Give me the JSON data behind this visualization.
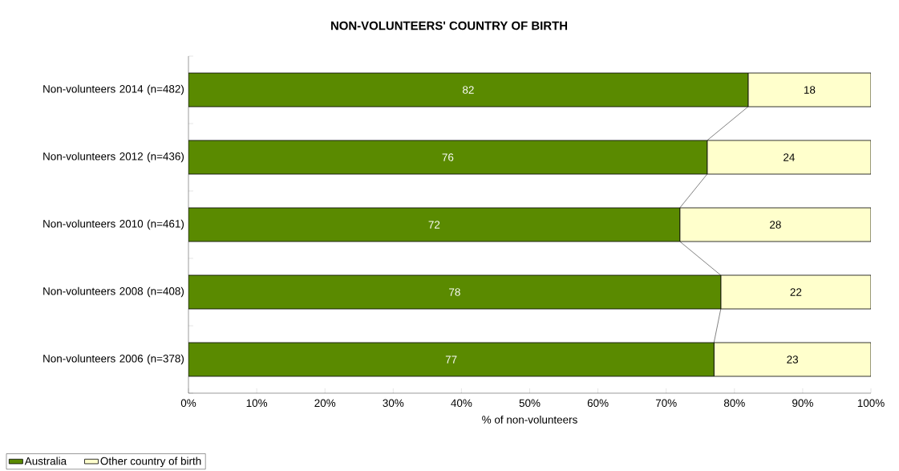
{
  "chart_data": {
    "type": "bar",
    "title": "NON-VOLUNTEERS' COUNTRY OF BIRTH",
    "xlabel": "% of non-volunteers",
    "orientation": "horizontal",
    "stacked": true,
    "data_labels": true,
    "legend": "bottom left",
    "categories": [
      "Non-volunteers 2014 (n=482)",
      "Non-volunteers 2012 (n=436)",
      "Non-volunteers 2010 (n=461)",
      "Non-volunteers 2008 (n=408)",
      "Non-volunteers 2006 (n=378)"
    ],
    "series": [
      {
        "name": "Australia",
        "color": "#5a8a00",
        "values": [
          82,
          76,
          72,
          78,
          77
        ]
      },
      {
        "name": "Other country of birth",
        "color": "#ffffcc",
        "values": [
          18,
          24,
          28,
          22,
          23
        ]
      }
    ],
    "xlim": [
      0,
      100
    ],
    "xticks": [
      {
        "value": 0,
        "label": "0%"
      },
      {
        "value": 10,
        "label": "10%"
      },
      {
        "value": 20,
        "label": "20%"
      },
      {
        "value": 30,
        "label": "30%"
      },
      {
        "value": 40,
        "label": "40%"
      },
      {
        "value": 50,
        "label": "50%"
      },
      {
        "value": 60,
        "label": "60%"
      },
      {
        "value": 70,
        "label": "70%"
      },
      {
        "value": 80,
        "label": "80%"
      },
      {
        "value": 90,
        "label": "90%"
      },
      {
        "value": 100,
        "label": "100%"
      }
    ]
  }
}
